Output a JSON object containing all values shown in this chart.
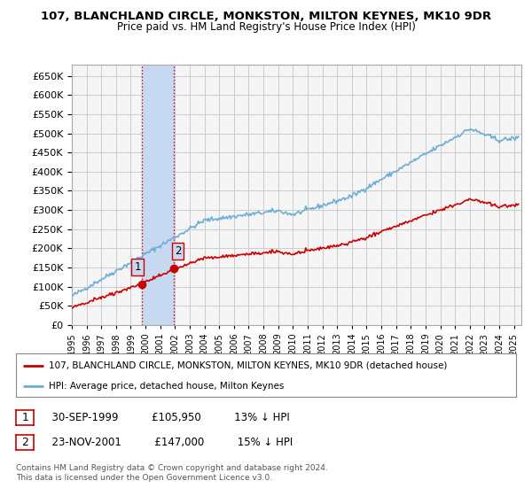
{
  "title": "107, BLANCHLAND CIRCLE, MONKSTON, MILTON KEYNES, MK10 9DR",
  "subtitle": "Price paid vs. HM Land Registry's House Price Index (HPI)",
  "ylim": [
    0,
    680000
  ],
  "ytick_values": [
    0,
    50000,
    100000,
    150000,
    200000,
    250000,
    300000,
    350000,
    400000,
    450000,
    500000,
    550000,
    600000,
    650000
  ],
  "sale1_date": 1999.75,
  "sale1_price": 105950,
  "sale2_date": 2001.9,
  "sale2_price": 147000,
  "hpi_color": "#6baed6",
  "sale_color": "#cc0000",
  "vline_color": "#cc0000",
  "highlight_color": "#c6d9f0",
  "grid_color": "#cccccc",
  "legend_label_red": "107, BLANCHLAND CIRCLE, MONKSTON, MILTON KEYNES, MK10 9DR (detached house)",
  "legend_label_blue": "HPI: Average price, detached house, Milton Keynes",
  "table_rows": [
    {
      "num": "1",
      "date": "30-SEP-1999",
      "price": "£105,950",
      "pct": "13% ↓ HPI"
    },
    {
      "num": "2",
      "date": "23-NOV-2001",
      "price": "£147,000",
      "pct": "15% ↓ HPI"
    }
  ],
  "footnote1": "Contains HM Land Registry data © Crown copyright and database right 2024.",
  "footnote2": "This data is licensed under the Open Government Licence v3.0.",
  "background_color": "#ffffff",
  "plot_bg_color": "#f5f5f5"
}
